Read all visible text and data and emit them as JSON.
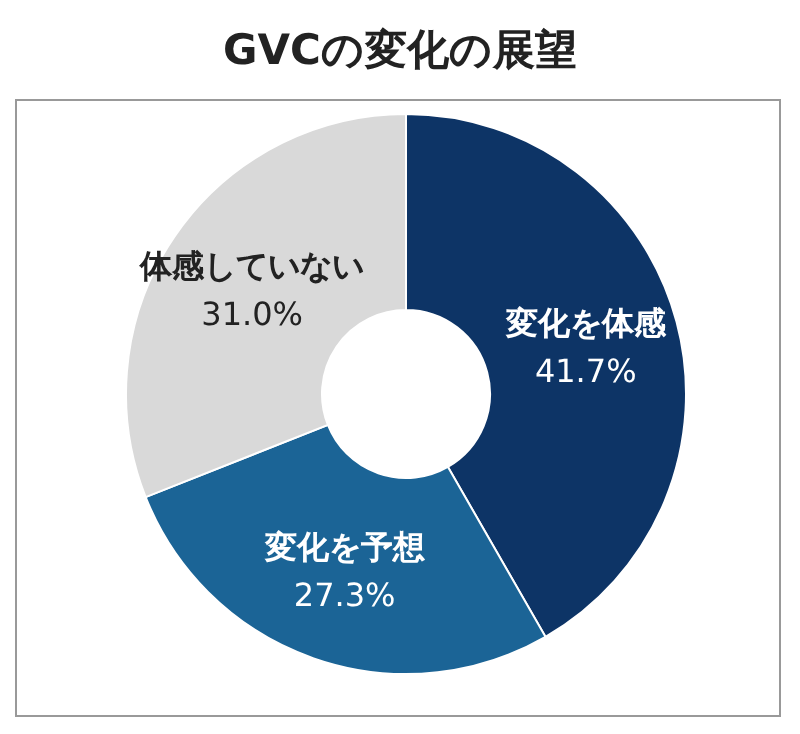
{
  "chart_data": {
    "type": "donut",
    "title": "GVCの変化の展望",
    "categories": [
      "変化を体感",
      "変化を予想",
      "体感していない"
    ],
    "values": [
      41.7,
      27.3,
      31.0
    ],
    "colors": [
      "#0d3466",
      "#1b6496",
      "#d9d9d9"
    ],
    "value_labels": [
      "41.7%",
      "27.3%",
      "31.0%"
    ]
  }
}
